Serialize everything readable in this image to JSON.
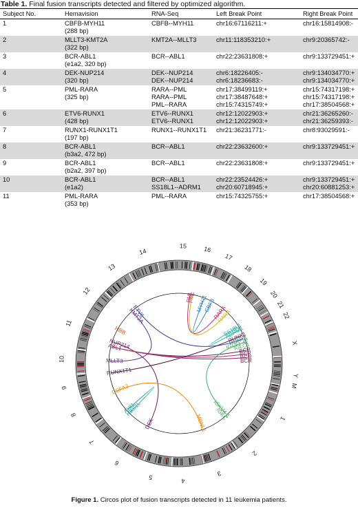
{
  "table": {
    "caption_label": "Table 1.",
    "caption_text": " Final fusion transcripts detected and filtered by optimized algorithm.",
    "headers": [
      "Subject No.",
      "Hemavision",
      "RNA-Seq",
      "Left Break Point",
      "Right Break Point"
    ],
    "rows": [
      {
        "subject": "1",
        "hema": [
          "CBFB-MYH11",
          "(288 bp)"
        ],
        "rna": [
          "CBFB--MYH11"
        ],
        "left": [
          "chr16:67116211:+"
        ],
        "right": [
          "chr16:15814908:-"
        ]
      },
      {
        "subject": "2",
        "hema": [
          "MLLT3-KMT2A",
          "(322 bp)"
        ],
        "rna": [
          "KMT2A--MLLT3"
        ],
        "left": [
          "chr11:118353210:+"
        ],
        "right": [
          "chr9:20365742:-"
        ]
      },
      {
        "subject": "3",
        "hema": [
          "BCR-ABL1",
          "(e1a2, 320 bp)"
        ],
        "rna": [
          "BCR--ABL1"
        ],
        "left": [
          "chr22:23631808:+"
        ],
        "right": [
          "chr9:133729451:+"
        ]
      },
      {
        "subject": "4",
        "hema": [
          "DEK-NUP214",
          "(320 bp)"
        ],
        "rna": [
          "DEK--NUP214",
          "DEK--NUP214"
        ],
        "left": [
          "chr6:18226405:-",
          "chr6:18236683:-"
        ],
        "right": [
          "chr9:134034770:+",
          "chr9:134034770:+"
        ]
      },
      {
        "subject": "5",
        "hema": [
          "PML-RARA",
          "(325 bp)"
        ],
        "rna": [
          "RARA--PML",
          "RARA--PML",
          "PML--RARA"
        ],
        "left": [
          "chr17:38499119:+",
          "chr17:38487648:+",
          "chr15:74315749:+"
        ],
        "right": [
          "chr15:74317198:+",
          "chr15:74317198:+",
          "chr17:38504568:+"
        ]
      },
      {
        "subject": "6",
        "hema": [
          "ETV6-RUNX1",
          "(428 bp)"
        ],
        "rna": [
          "ETV6--RUNX1",
          "ETV6--RUNX1"
        ],
        "left": [
          "chr12:12022903:+",
          "chr12:12022903:+"
        ],
        "right": [
          "chr21:36265260:-",
          "chr21:36259393:-"
        ]
      },
      {
        "subject": "7",
        "hema": [
          "RUNX1-RUNX1T1",
          "(197 bp)"
        ],
        "rna": [
          "RUNX1--RUNX1T1"
        ],
        "left": [
          "chr21:36231771:-"
        ],
        "right": [
          "chr8:93029591:-"
        ]
      },
      {
        "subject": "8",
        "hema": [
          "BCR-ABL1",
          "(b3a2, 472 bp)"
        ],
        "rna": [
          "BCR--ABL1"
        ],
        "left": [
          "chr22:23632600:+"
        ],
        "right": [
          "chr9:133729451:+"
        ]
      },
      {
        "subject": "9",
        "hema": [
          "BCR-ABL1",
          "(b2a2, 397 bp)"
        ],
        "rna": [
          "BCR--ABL1"
        ],
        "left": [
          "chr22:23631808:+"
        ],
        "right": [
          "chr9:133729451:+"
        ]
      },
      {
        "subject": "10",
        "hema": [
          "BCR-ABL1",
          "(e1a2)"
        ],
        "rna": [
          "BCR--ABL1",
          "SS18L1--ADRM1"
        ],
        "left": [
          "chr22:23524426:+",
          "chr20:60718945:+"
        ],
        "right": [
          "chr9:133729451:+",
          "chr20:60881253:+"
        ]
      },
      {
        "subject": "11",
        "hema": [
          "PML-RARA",
          "(353 bp)"
        ],
        "rna": [
          "PML--RARA"
        ],
        "left": [
          "chr15:74325755:+"
        ],
        "right": [
          "chr17:38504568:+"
        ]
      }
    ]
  },
  "figure": {
    "chromosomes": [
      "1",
      "2",
      "3",
      "4",
      "5",
      "6",
      "7",
      "8",
      "9",
      "10",
      "11",
      "12",
      "13",
      "14",
      "15",
      "16",
      "17",
      "18",
      "19",
      "20",
      "21",
      "22",
      "X",
      "Y",
      "M"
    ],
    "gene_labels": [
      {
        "text": "PML",
        "color": "#c0306a"
      },
      {
        "text": "PML",
        "color": "#b02040"
      },
      {
        "text": "MYH11",
        "color": "#2a7fc0"
      },
      {
        "text": "CBFB",
        "color": "#2a7fc0"
      },
      {
        "text": "RARA",
        "color": "#cc2255"
      },
      {
        "text": "RARA",
        "color": "#e0b000"
      },
      {
        "text": "SS18L1",
        "color": "#18b0a0"
      },
      {
        "text": "ADRM1",
        "color": "#18b0a0"
      },
      {
        "text": "RUNX1",
        "color": "#701850"
      },
      {
        "text": "RUNX1",
        "color": "#20a070"
      },
      {
        "text": "IGLV1-47",
        "color": "#40b060"
      },
      {
        "text": "IGLC1",
        "color": "#40b060"
      },
      {
        "text": "BCR",
        "color": "#701850"
      },
      {
        "text": "BCR",
        "color": "#902060"
      },
      {
        "text": "BCR",
        "color": "#a03070"
      },
      {
        "text": "BCR",
        "color": "#902060"
      },
      {
        "text": "ETV6",
        "color": "#3040a0"
      },
      {
        "text": "KMT2A",
        "color": "#5a2a8a"
      },
      {
        "text": "HBB",
        "color": "#e05020"
      },
      {
        "text": "NUP214",
        "color": "#7a1a5a"
      },
      {
        "text": "ABL1",
        "color": "#7a1a5a"
      },
      {
        "text": "MLLT3",
        "color": "#5a2a6a"
      },
      {
        "text": "RUNX1T1",
        "color": "#501848"
      },
      {
        "text": "DEFA3",
        "color": "#e09000"
      },
      {
        "text": "AHI1",
        "color": "#18a0a0"
      },
      {
        "text": "HBS1L",
        "color": "#18a0a0"
      },
      {
        "text": "DEK",
        "color": "#601860"
      },
      {
        "text": "IGKC",
        "color": "#40b060"
      },
      {
        "text": "IGKV4-1",
        "color": "#40b060"
      },
      {
        "text": "MBNL1",
        "color": "#f08000"
      }
    ],
    "caption_label": "Figure 1.",
    "caption_text": " Circos plot of fusion transcripts detected in 11 leukemia patients."
  }
}
